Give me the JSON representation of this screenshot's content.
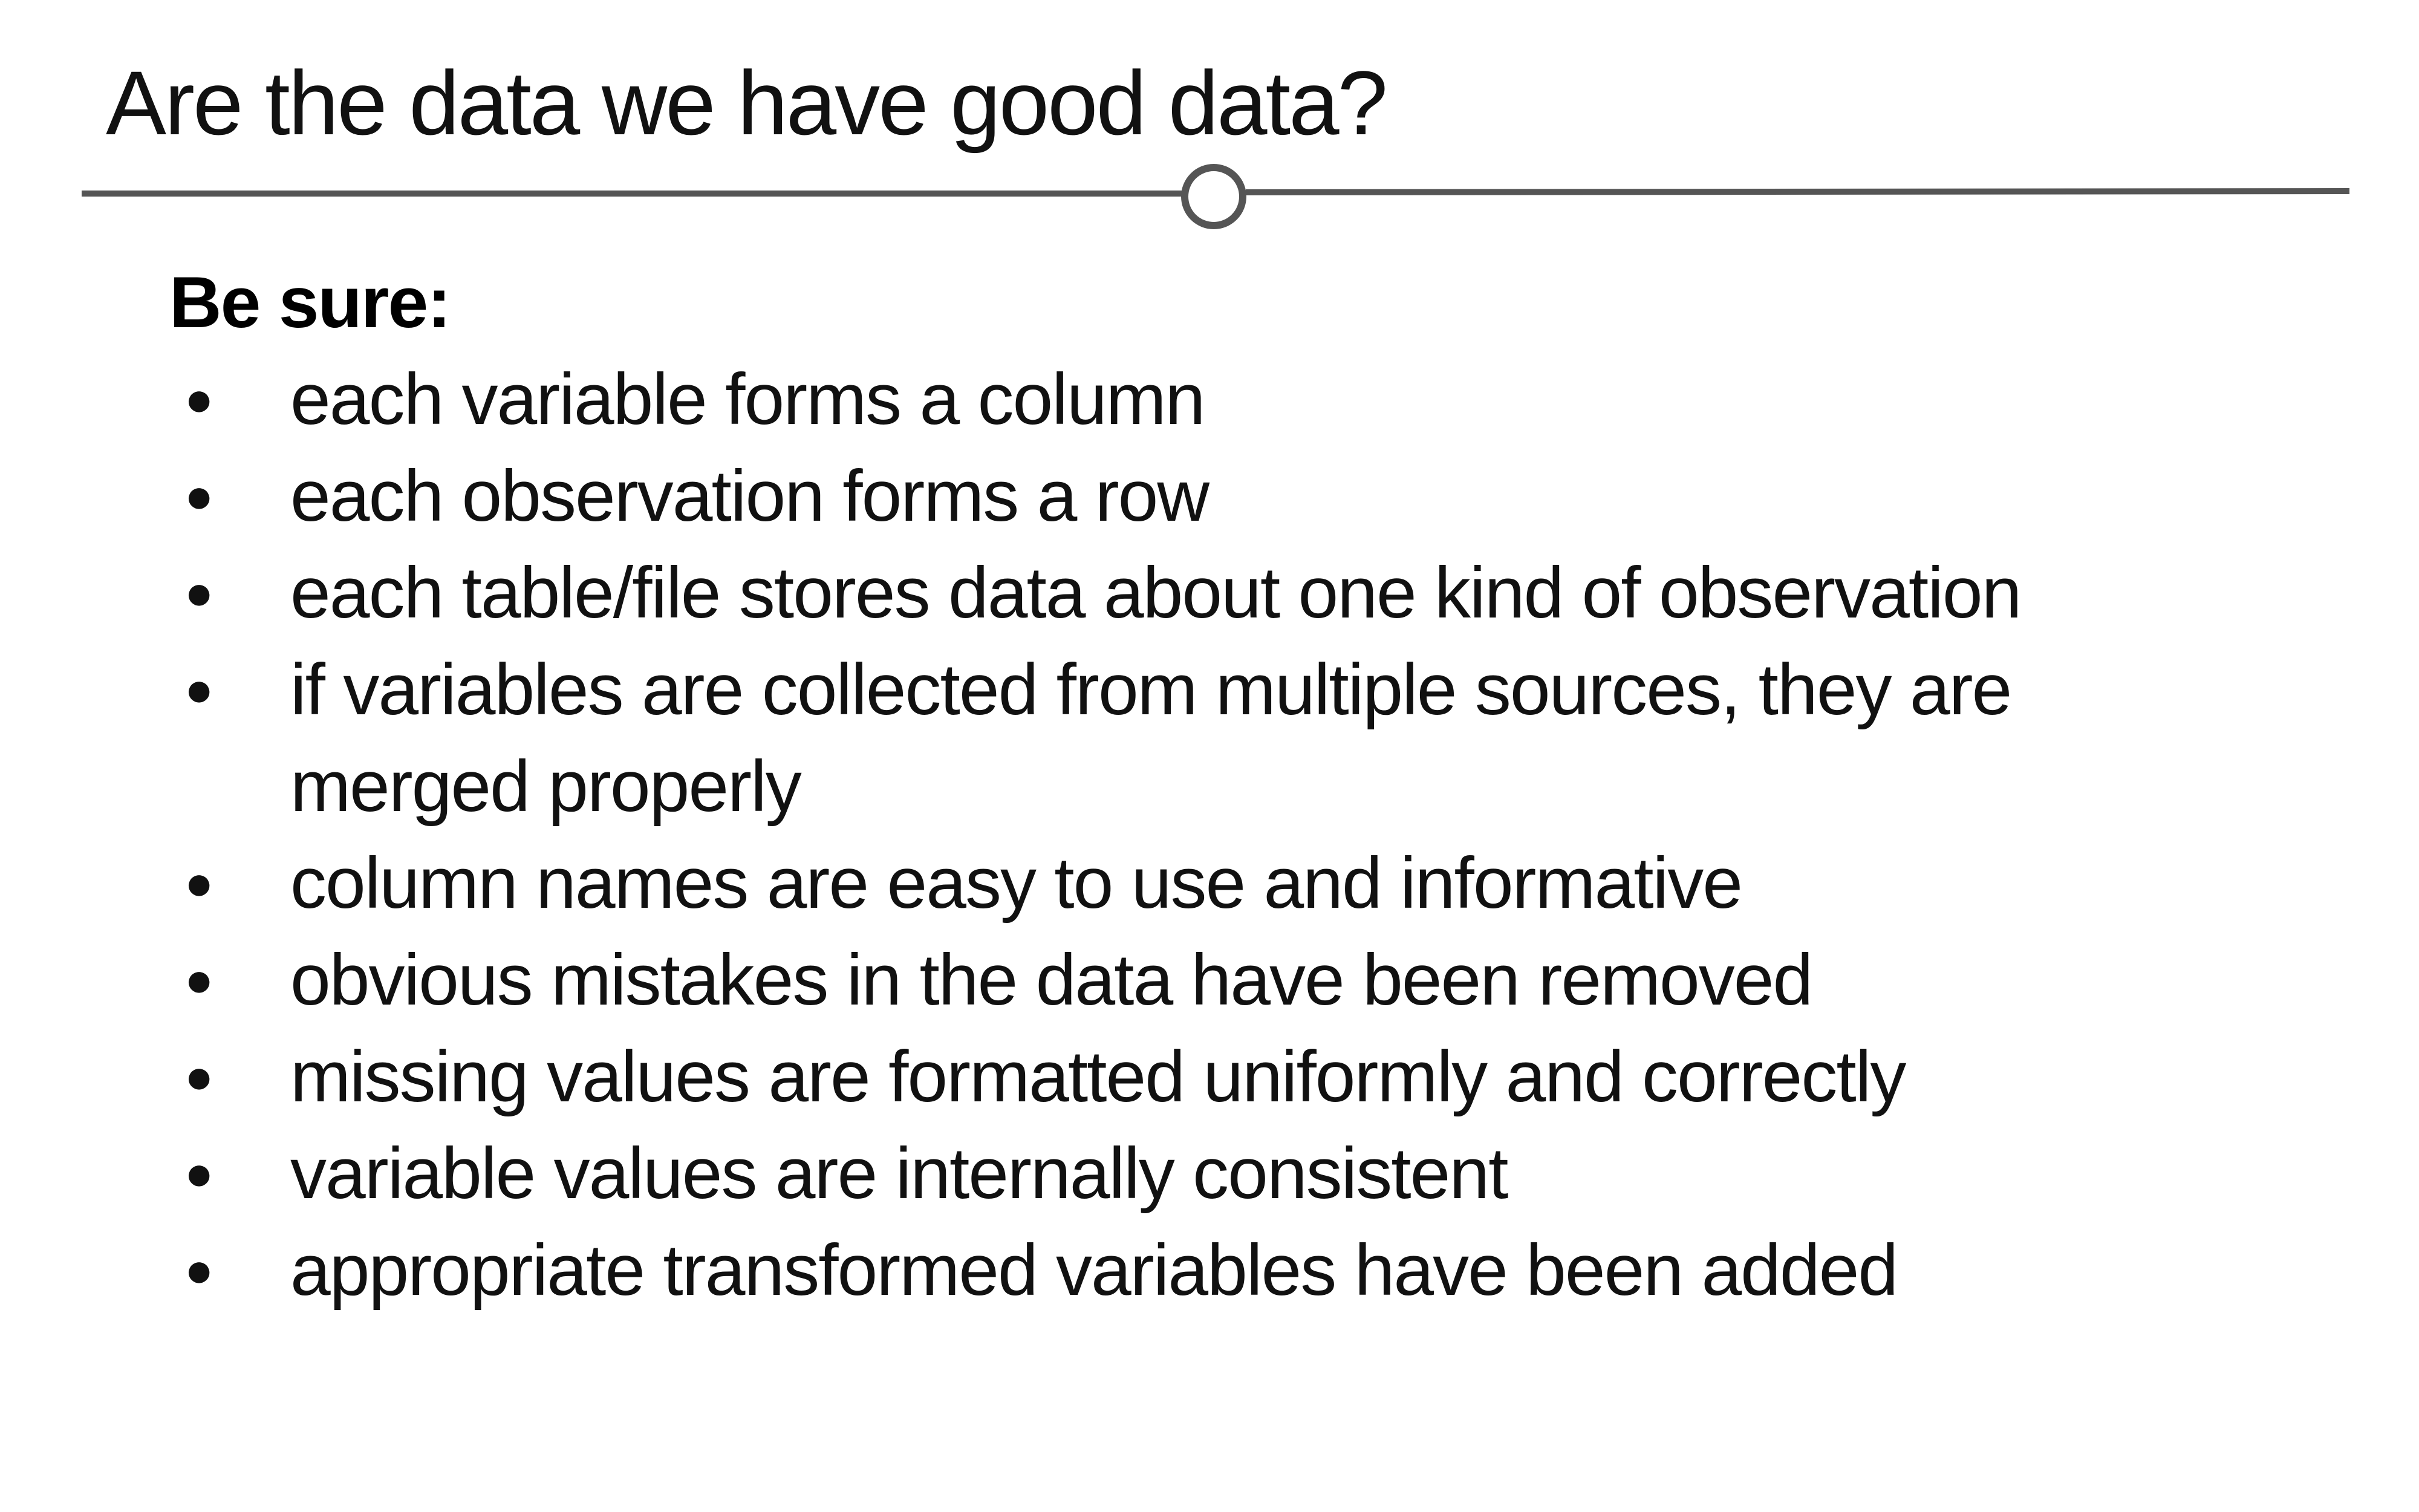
{
  "slide": {
    "title": "Are the data we have good data?",
    "heading": "Be sure:",
    "bullet_glyph": "●",
    "bullets": [
      "each variable forms a column",
      "each observation forms a row",
      "each table/file stores data about one kind of observation",
      "if variables are collected from multiple sources, they are merged properly",
      "column names are easy to use and informative",
      "obvious mistakes in the data have been removed",
      "missing values are formatted uniformly and correctly",
      "variable values are internally consistent",
      "appropriate transformed variables have been added"
    ]
  },
  "colors": {
    "divider": "#555555",
    "text": "#111111"
  }
}
